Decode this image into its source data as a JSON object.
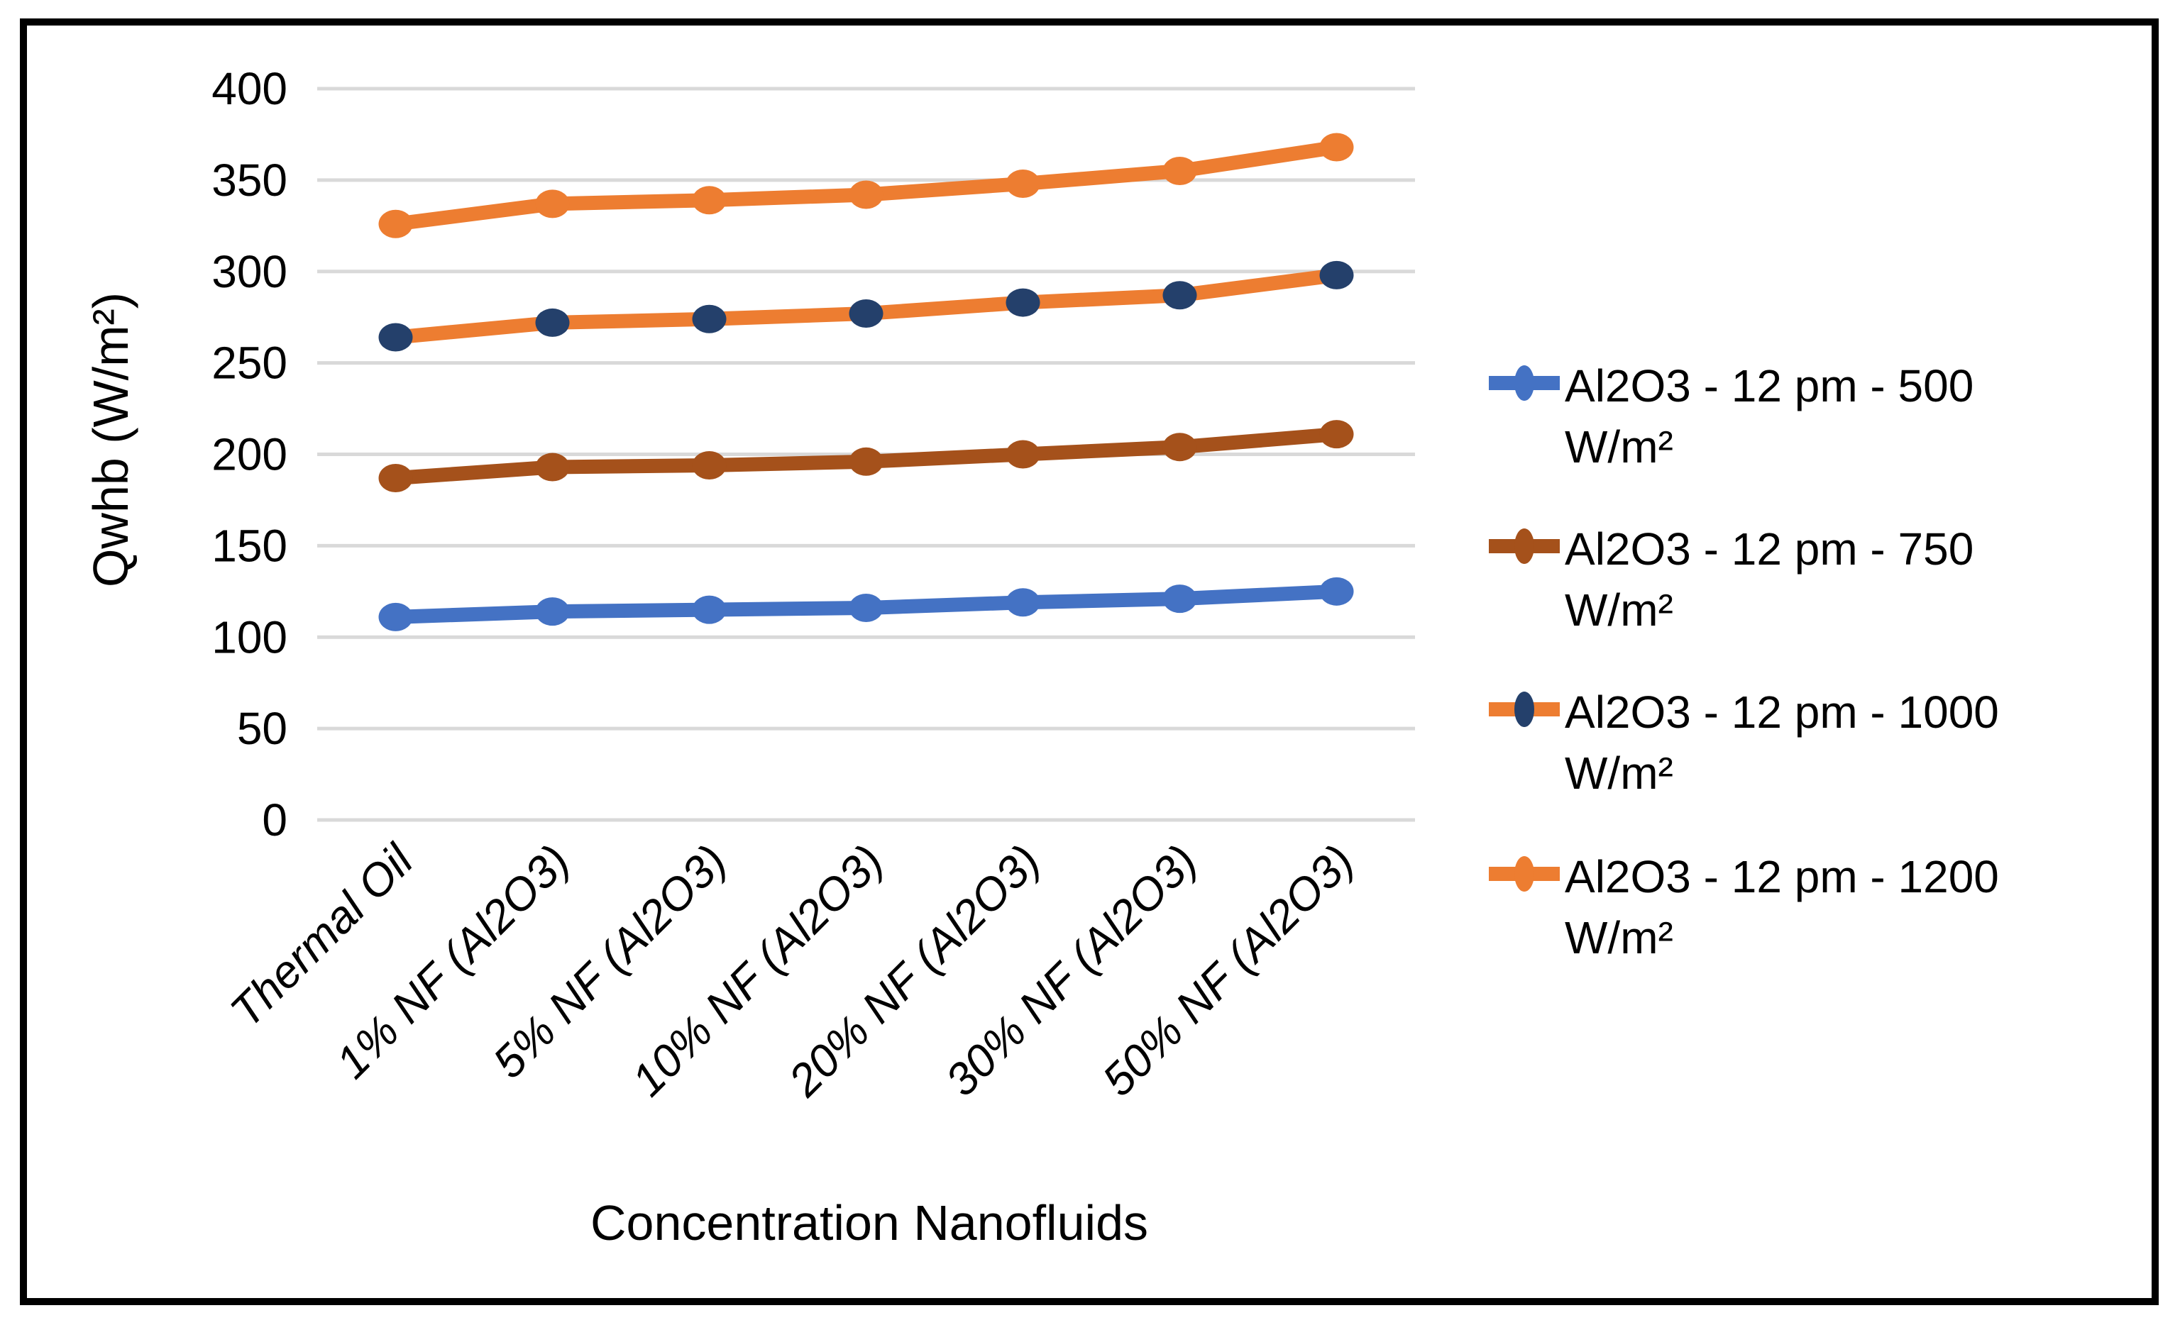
{
  "figure": {
    "y_axis_title": "Qwhb (W/m²)",
    "x_axis_title": "Concentration Nanofluids"
  },
  "colors": {
    "grid": "#D9D9D9",
    "text": "#000000",
    "frame_border": "#000000",
    "blue": "#4472C4",
    "brown": "#A5511B",
    "navy": "#24406B",
    "orange": "#ED7D31"
  },
  "chart_data": {
    "type": "line",
    "title": "",
    "xlabel": "Concentration Nanofluids",
    "ylabel": "Qwhb (W/m²)",
    "ylim": [
      0,
      400
    ],
    "y_tick_step": 50,
    "y_ticks": [
      0,
      50,
      100,
      150,
      200,
      250,
      300,
      350,
      400
    ],
    "grid": true,
    "legend_position": "right",
    "categories": [
      "Thermal Oil",
      "1% NF (Al2O3)",
      "5% NF (Al2O3)",
      "10% NF (Al2O3)",
      "20% NF (Al2O3)",
      "30% NF (Al2O3)",
      "50% NF (Al2O3)"
    ],
    "series": [
      {
        "id": "al2o3-12pm-500",
        "name": "Al2O3 - 12 pm - 500 W/m²",
        "legend_lines": [
          "Al2O3 - 12 pm - 500",
          "W/m²"
        ],
        "line_color": "#4472C4",
        "marker_color": "#4472C4",
        "values": [
          111,
          114,
          115,
          116,
          119,
          121,
          125
        ]
      },
      {
        "id": "al2o3-12pm-750",
        "name": "Al2O3 - 12 pm - 750 W/m²",
        "legend_lines": [
          "Al2O3 - 12 pm - 750",
          "W/m²"
        ],
        "line_color": "#A5511B",
        "marker_color": "#A5511B",
        "values": [
          187,
          193,
          194,
          196,
          200,
          204,
          211
        ]
      },
      {
        "id": "al2o3-12pm-1000",
        "name": "Al2O3 - 12 pm - 1000 W/m²",
        "legend_lines": [
          "Al2O3 - 12 pm - 1000",
          "W/m²"
        ],
        "line_color": "#ED7D31",
        "marker_color": "#24406B",
        "values": [
          264,
          272,
          274,
          277,
          283,
          287,
          298
        ]
      },
      {
        "id": "al2o3-12pm-1200",
        "name": "Al2O3 - 12 pm - 1200 W/m²",
        "legend_lines": [
          "Al2O3 - 12 pm - 1200",
          "W/m²"
        ],
        "line_color": "#ED7D31",
        "marker_color": "#ED7D31",
        "values": [
          326,
          337,
          339,
          342,
          348,
          355,
          368
        ]
      }
    ]
  }
}
